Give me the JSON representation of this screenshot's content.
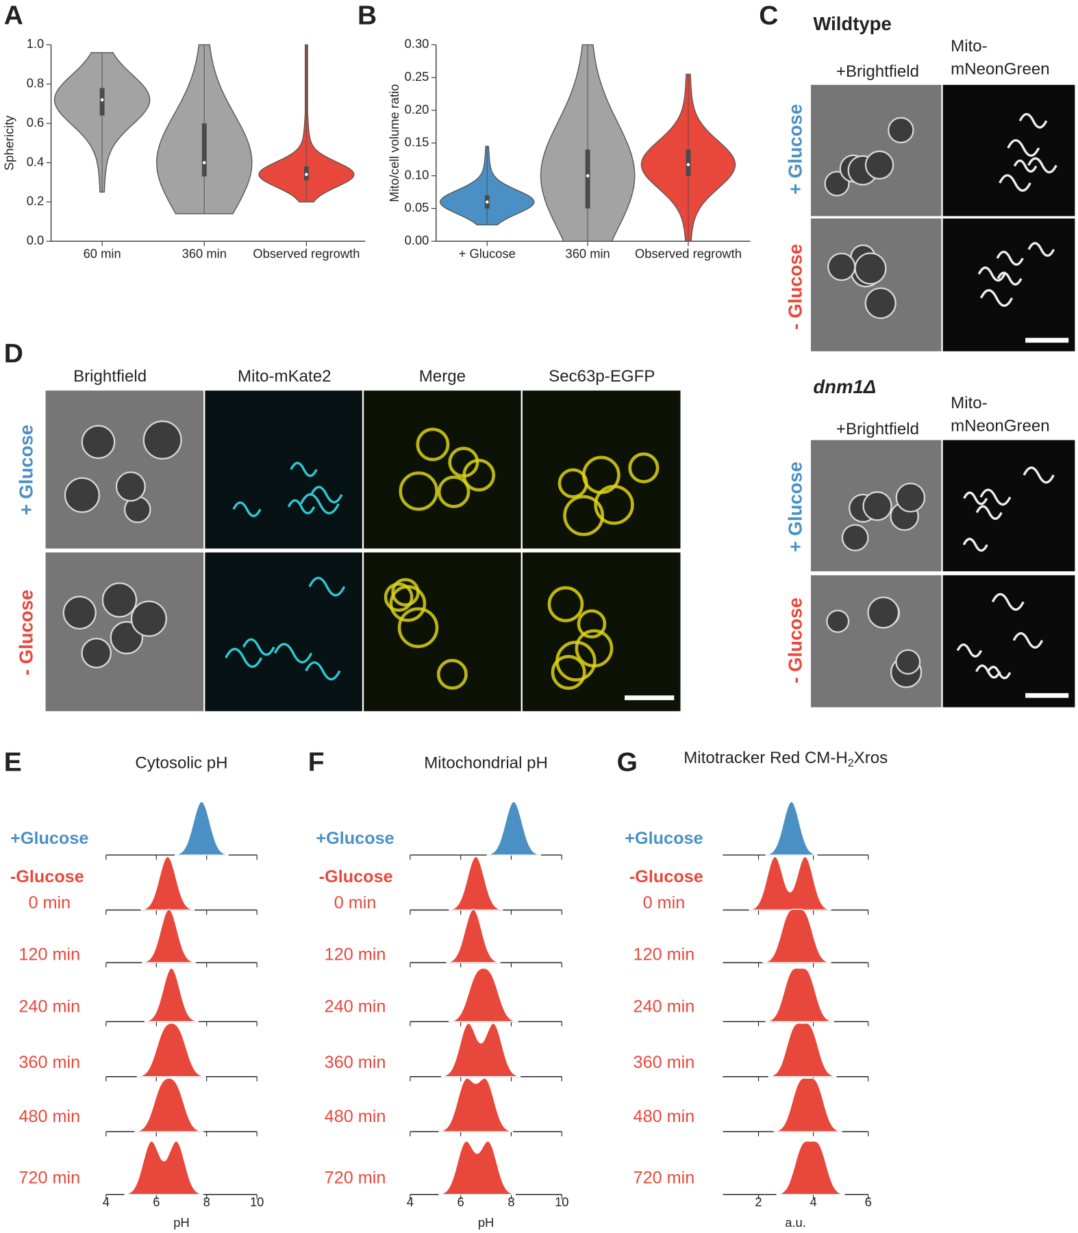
{
  "panel_letters": [
    "A",
    "B",
    "C",
    "D",
    "E",
    "F",
    "G"
  ],
  "panel_c": {
    "strains": [
      "Wildtype",
      "dnm1Δ"
    ],
    "columns": [
      "+Brightfield",
      "Mito-",
      "mNeonGreen"
    ],
    "rows": [
      "+ Glucose",
      "- Glucose"
    ]
  },
  "panel_d": {
    "columns": [
      "Brightfield",
      "Mito-mKate2",
      "Merge",
      "Sec63p-EGFP"
    ],
    "rows": [
      "+ Glucose",
      "- Glucose"
    ]
  },
  "chart_data": [
    {
      "type": "violin",
      "ylabel": "Sphericity",
      "categories": [
        "60 min",
        "360 min",
        "Observed regrowth"
      ],
      "colors": [
        "#a3a3a3",
        "#a3a3a3",
        "#e8483b"
      ],
      "values": [
        0.72,
        0.4,
        0.34
      ],
      "q1": [
        0.64,
        0.33,
        0.31
      ],
      "q3": [
        0.78,
        0.6,
        0.38
      ],
      "min": [
        0.25,
        0.14,
        0.2
      ],
      "max": [
        0.96,
        1.0,
        1.0
      ],
      "ylim": [
        0,
        1
      ],
      "yticks": [
        {
          "value": 0,
          "label": "0.0"
        },
        {
          "value": 0.2,
          "label": "0.2"
        },
        {
          "value": 0.4,
          "label": "0.4"
        },
        {
          "value": 0.6,
          "label": "0.6"
        },
        {
          "value": 0.8,
          "label": "0.8"
        },
        {
          "value": 1,
          "label": "1.0"
        }
      ]
    },
    {
      "type": "violin",
      "ylabel": "Mito/cell volume ratio",
      "categories": [
        "+ Glucose",
        "360 min",
        "Observed regrowth"
      ],
      "colors": [
        "#4a90c4",
        "#a3a3a3",
        "#e8483b"
      ],
      "values": [
        0.06,
        0.1,
        0.117
      ],
      "q1": [
        0.05,
        0.05,
        0.1
      ],
      "q3": [
        0.07,
        0.14,
        0.14
      ],
      "min": [
        0.025,
        0,
        0
      ],
      "max": [
        0.145,
        0.3,
        0.255
      ],
      "ylim": [
        0,
        0.3
      ],
      "yticks": [
        {
          "value": 0,
          "label": "0.00"
        },
        {
          "value": 0.05,
          "label": "0.05"
        },
        {
          "value": 0.1,
          "label": "0.10"
        },
        {
          "value": 0.15,
          "label": "0.15"
        },
        {
          "value": 0.2,
          "label": "0.20"
        },
        {
          "value": 0.25,
          "label": "0.25"
        },
        {
          "value": 0.3,
          "label": "0.30"
        }
      ]
    },
    {
      "type": "ridgeline",
      "title": "Cytosolic pH",
      "xlabel": "pH",
      "group_label": "-Glucose",
      "xlim": [
        4,
        10
      ],
      "xticks": [
        4,
        6,
        8,
        10
      ],
      "series": [
        {
          "name": "+Glucose",
          "color": "#4a90c4",
          "modes": [
            7.8
          ]
        },
        {
          "name": "0 min",
          "color": "#e8483b",
          "modes": [
            6.45
          ]
        },
        {
          "name": "120 min",
          "color": "#e8483b",
          "modes": [
            6.5
          ]
        },
        {
          "name": "240 min",
          "color": "#e8483b",
          "modes": [
            6.6
          ]
        },
        {
          "name": "360 min",
          "color": "#e8483b",
          "modes": [
            6.3,
            6.9
          ]
        },
        {
          "name": "480 min",
          "color": "#e8483b",
          "modes": [
            6.2,
            6.8
          ]
        },
        {
          "name": "720 min",
          "color": "#e8483b",
          "modes": [
            5.8,
            6.8
          ]
        }
      ]
    },
    {
      "type": "ridgeline",
      "title": "Mitochondrial pH",
      "xlabel": "pH",
      "group_label": "-Glucose",
      "xlim": [
        4,
        10
      ],
      "xticks": [
        4,
        6,
        8,
        10
      ],
      "series": [
        {
          "name": "+Glucose",
          "color": "#4a90c4",
          "modes": [
            8.1
          ]
        },
        {
          "name": "0 min",
          "color": "#e8483b",
          "modes": [
            6.6
          ]
        },
        {
          "name": "120 min",
          "color": "#e8483b",
          "modes": [
            6.5
          ]
        },
        {
          "name": "240 min",
          "color": "#e8483b",
          "modes": [
            6.6,
            7.2
          ]
        },
        {
          "name": "360 min",
          "color": "#e8483b",
          "modes": [
            6.3,
            7.3
          ]
        },
        {
          "name": "480 min",
          "color": "#e8483b",
          "modes": [
            6.2,
            7.0
          ]
        },
        {
          "name": "720 min",
          "color": "#e8483b",
          "modes": [
            6.2,
            7.1
          ]
        }
      ]
    },
    {
      "type": "ridgeline",
      "title_parts": [
        "Mitotracker Red CM-H",
        "2",
        "Xros"
      ],
      "xlabel": "a.u.",
      "group_label": "-Glucose",
      "xlim": [
        0.7,
        6
      ],
      "xticks": [
        2,
        4,
        6
      ],
      "series": [
        {
          "name": "+Glucose",
          "color": "#4a90c4",
          "modes": [
            3.2
          ]
        },
        {
          "name": "0 min",
          "color": "#e8483b",
          "modes": [
            2.6,
            3.7
          ]
        },
        {
          "name": "120 min",
          "color": "#e8483b",
          "modes": [
            3.1,
            3.7
          ]
        },
        {
          "name": "240 min",
          "color": "#e8483b",
          "modes": [
            3.2,
            3.8
          ]
        },
        {
          "name": "360 min",
          "color": "#e8483b",
          "modes": [
            3.3,
            3.9
          ]
        },
        {
          "name": "480 min",
          "color": "#e8483b",
          "modes": [
            3.5,
            4.1
          ]
        },
        {
          "name": "720 min",
          "color": "#e8483b",
          "modes": [
            3.6,
            4.2
          ]
        }
      ]
    }
  ]
}
